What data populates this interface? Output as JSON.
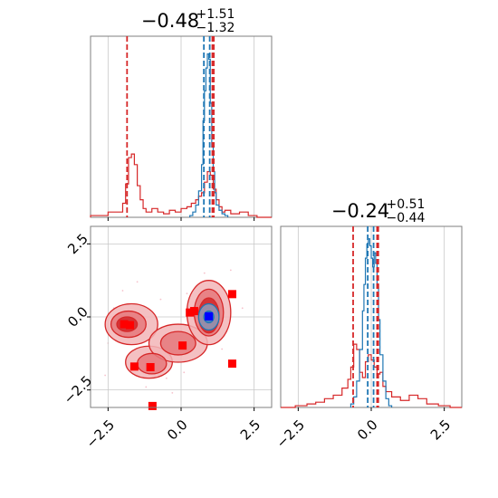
{
  "colors": {
    "red": "#d62728",
    "red_fill": "#e8898a",
    "red_dark": "#c91c20",
    "blue": "#1f77b4",
    "marker_red": "#ff0000",
    "marker_blue": "#0000ff",
    "grid": "#c8c8c8",
    "axis": "#7f7f7f"
  },
  "chart_data": [
    {
      "panel": "top-left",
      "type": "histogram",
      "title": {
        "main": "−0.48",
        "sup": "+1.51",
        "sub": "−1.32"
      },
      "xlim": [
        -3.1,
        3.1
      ],
      "grid": true,
      "ticks": [
        -2.5,
        0.0,
        2.5
      ],
      "series": [
        {
          "color": "red",
          "bin_edges": [
            -3.1,
            -2.5,
            -2.0,
            -1.9,
            -1.8,
            -1.7,
            -1.6,
            -1.5,
            -1.4,
            -1.3,
            -1.2,
            -1.0,
            -0.8,
            -0.6,
            -0.4,
            -0.2,
            0.0,
            0.2,
            0.35,
            0.5,
            0.6,
            0.7,
            0.8,
            0.9,
            1.0,
            1.1,
            1.2,
            1.3,
            1.4,
            1.5,
            1.7,
            2.0,
            2.3,
            2.6,
            3.1
          ],
          "counts": [
            0.01,
            0.03,
            0.08,
            0.19,
            0.34,
            0.36,
            0.3,
            0.18,
            0.1,
            0.05,
            0.03,
            0.05,
            0.03,
            0.02,
            0.04,
            0.03,
            0.05,
            0.06,
            0.08,
            0.1,
            0.12,
            0.14,
            0.2,
            0.26,
            0.24,
            0.16,
            0.1,
            0.06,
            0.03,
            0.04,
            0.02,
            0.03,
            0.01,
            0.0
          ]
        },
        {
          "color": "blue",
          "bin_edges": [
            0.3,
            0.4,
            0.5,
            0.6,
            0.7,
            0.75,
            0.8,
            0.85,
            0.9,
            0.95,
            1.0,
            1.05,
            1.1,
            1.15,
            1.2,
            1.3,
            1.4,
            1.5,
            1.6
          ],
          "counts": [
            0.01,
            0.03,
            0.07,
            0.15,
            0.3,
            0.55,
            0.72,
            0.85,
            0.93,
            0.9,
            0.65,
            0.4,
            0.26,
            0.14,
            0.07,
            0.04,
            0.02,
            0.01
          ]
        }
      ],
      "vlines": [
        {
          "x": -1.85,
          "color": "red"
        },
        {
          "x": 0.78,
          "color": "blue"
        },
        {
          "x": 0.98,
          "color": "blue"
        },
        {
          "x": 1.07,
          "color": "red"
        },
        {
          "x": 1.12,
          "color": "red"
        }
      ]
    },
    {
      "panel": "bottom-left",
      "type": "scatter",
      "xlim": [
        -3.1,
        3.1
      ],
      "ylim": [
        -3.1,
        3.1
      ],
      "grid": true,
      "xticks": [
        -2.5,
        0.0,
        2.5
      ],
      "yticks": [
        -2.5,
        0.0,
        2.5
      ],
      "contours": [
        {
          "color": "red",
          "level": "outer",
          "center": [
            -1.7,
            -0.25
          ],
          "rx": 0.9,
          "ry": 0.7
        },
        {
          "color": "red",
          "level": "outer",
          "center": [
            -1.1,
            -1.55
          ],
          "rx": 0.8,
          "ry": 0.55
        },
        {
          "color": "red",
          "level": "outer",
          "center": [
            -0.1,
            -0.9
          ],
          "rx": 1.0,
          "ry": 0.65
        },
        {
          "color": "red",
          "level": "outer",
          "center": [
            0.95,
            0.15
          ],
          "rx": 0.75,
          "ry": 1.1
        },
        {
          "color": "red",
          "level": "mid",
          "center": [
            -1.8,
            -0.25
          ],
          "rx": 0.6,
          "ry": 0.45
        },
        {
          "color": "red",
          "level": "mid",
          "center": [
            -1.0,
            -1.6
          ],
          "rx": 0.5,
          "ry": 0.35
        },
        {
          "color": "red",
          "level": "mid",
          "center": [
            -0.1,
            -0.9
          ],
          "rx": 0.6,
          "ry": 0.4
        },
        {
          "color": "red",
          "level": "mid",
          "center": [
            0.95,
            0.15
          ],
          "rx": 0.5,
          "ry": 0.8
        },
        {
          "color": "red",
          "level": "inner",
          "center": [
            -1.85,
            -0.25
          ],
          "rx": 0.35,
          "ry": 0.25
        },
        {
          "color": "red",
          "level": "inner",
          "center": [
            0.95,
            0.05
          ],
          "rx": 0.35,
          "ry": 0.6
        },
        {
          "color": "blue",
          "level": "outer",
          "center": [
            0.95,
            0.0
          ],
          "rx": 0.35,
          "ry": 0.45
        },
        {
          "color": "blue",
          "level": "inner",
          "center": [
            0.95,
            0.0
          ],
          "rx": 0.17,
          "ry": 0.2
        }
      ],
      "red_markers": [
        {
          "x": -1.95,
          "y": -0.25
        },
        {
          "x": -1.75,
          "y": -0.28
        },
        {
          "x": -1.6,
          "y": -1.7
        },
        {
          "x": -1.05,
          "y": -1.72
        },
        {
          "x": 0.05,
          "y": -0.98
        },
        {
          "x": 0.3,
          "y": 0.15
        },
        {
          "x": 0.45,
          "y": 0.2
        },
        {
          "x": 1.75,
          "y": 0.78
        },
        {
          "x": 1.75,
          "y": -1.6
        },
        {
          "x": -0.98,
          "y": -3.05
        }
      ],
      "blue_marker": {
        "x": 0.95,
        "y": 0.02
      }
    },
    {
      "panel": "bottom-right",
      "type": "histogram",
      "title": {
        "main": "−0.24",
        "sup": "+0.51",
        "sub": "−0.44"
      },
      "xlim": [
        -3.1,
        3.1
      ],
      "grid": true,
      "ticks": [
        -2.5,
        0.0,
        2.5
      ],
      "series": [
        {
          "color": "red",
          "bin_edges": [
            -3.1,
            -2.6,
            -2.2,
            -1.9,
            -1.6,
            -1.3,
            -1.0,
            -0.8,
            -0.7,
            -0.6,
            -0.5,
            -0.4,
            -0.3,
            -0.2,
            -0.1,
            0.0,
            0.1,
            0.2,
            0.3,
            0.4,
            0.5,
            0.7,
            1.0,
            1.3,
            1.6,
            1.9,
            2.3,
            2.7,
            3.1
          ],
          "counts": [
            0.0,
            0.01,
            0.02,
            0.03,
            0.05,
            0.07,
            0.11,
            0.16,
            0.23,
            0.36,
            0.33,
            0.2,
            0.17,
            0.26,
            0.3,
            0.27,
            0.23,
            0.19,
            0.2,
            0.12,
            0.09,
            0.06,
            0.04,
            0.07,
            0.05,
            0.02,
            0.01,
            0.0
          ]
        },
        {
          "color": "blue",
          "bin_edges": [
            -0.7,
            -0.6,
            -0.5,
            -0.4,
            -0.3,
            -0.25,
            -0.2,
            -0.15,
            -0.1,
            -0.05,
            0.0,
            0.05,
            0.1,
            0.15,
            0.2,
            0.25,
            0.3,
            0.4,
            0.5,
            0.6,
            0.7
          ],
          "counts": [
            0.02,
            0.06,
            0.15,
            0.33,
            0.55,
            0.7,
            0.85,
            0.93,
            0.96,
            0.92,
            0.85,
            0.8,
            0.88,
            0.82,
            0.7,
            0.5,
            0.3,
            0.15,
            0.05,
            0.01
          ]
        }
      ],
      "vlines": [
        {
          "x": -0.62,
          "color": "red"
        },
        {
          "x": -0.12,
          "color": "blue"
        },
        {
          "x": 0.08,
          "color": "blue"
        },
        {
          "x": 0.2,
          "color": "red"
        },
        {
          "x": 0.24,
          "color": "red"
        }
      ]
    }
  ]
}
